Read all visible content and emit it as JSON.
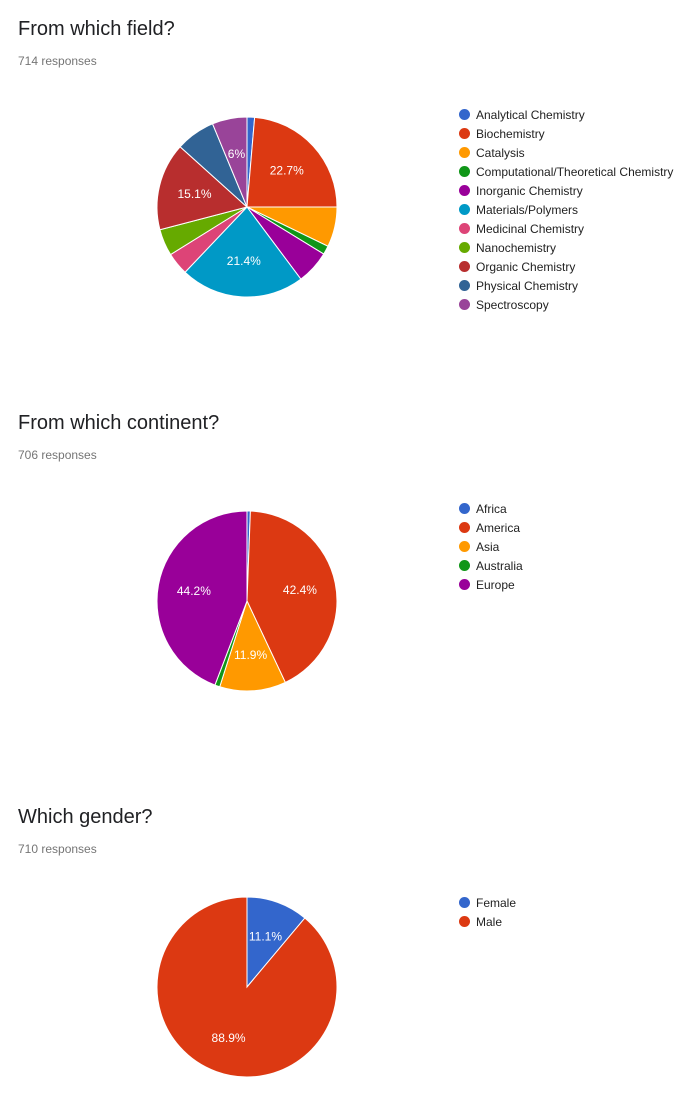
{
  "sections": [
    {
      "title": "From which field?",
      "responses": "714 responses"
    },
    {
      "title": "From which continent?",
      "responses": "706 responses"
    },
    {
      "title": "Which gender?",
      "responses": "710 responses"
    }
  ],
  "chart_data": [
    {
      "type": "pie",
      "title": "From which field?",
      "legend_position": "right",
      "start_angle_deg": 90,
      "direction": "clockwise",
      "categories": [
        "Analytical Chemistry",
        "Biochemistry",
        "Catalysis",
        "Computational/Theoretical Chemistry",
        "Inorganic Chemistry",
        "Materials/Polymers",
        "Medicinal Chemistry",
        "Nanochemistry",
        "Organic Chemistry",
        "Physical Chemistry",
        "Spectroscopy"
      ],
      "values": [
        1.3,
        22.7,
        6.9,
        1.5,
        5.8,
        21.4,
        3.9,
        4.6,
        15.1,
        6.8,
        6.0
      ],
      "labels": [
        "",
        "22.7%",
        "",
        "",
        "",
        "21.4%",
        "",
        "",
        "15.1%",
        "",
        "6%"
      ],
      "colors": [
        "#3366cc",
        "#dc3912",
        "#ff9900",
        "#109618",
        "#990099",
        "#0099c6",
        "#dd4477",
        "#66aa00",
        "#b82e2e",
        "#316395",
        "#994499"
      ]
    },
    {
      "type": "pie",
      "title": "From which continent?",
      "legend_position": "right",
      "start_angle_deg": 90,
      "direction": "clockwise",
      "categories": [
        "Africa",
        "America",
        "Asia",
        "Australia",
        "Europe"
      ],
      "values": [
        0.6,
        42.4,
        11.9,
        0.9,
        44.2
      ],
      "labels": [
        "",
        "42.4%",
        "11.9%",
        "",
        "44.2%"
      ],
      "colors": [
        "#3366cc",
        "#dc3912",
        "#ff9900",
        "#109618",
        "#990099"
      ]
    },
    {
      "type": "pie",
      "title": "Which gender?",
      "legend_position": "right",
      "start_angle_deg": 90,
      "direction": "clockwise",
      "categories": [
        "Female",
        "Male"
      ],
      "values": [
        11.1,
        88.9
      ],
      "labels": [
        "11.1%",
        "88.9%"
      ],
      "colors": [
        "#3366cc",
        "#dc3912"
      ]
    }
  ]
}
